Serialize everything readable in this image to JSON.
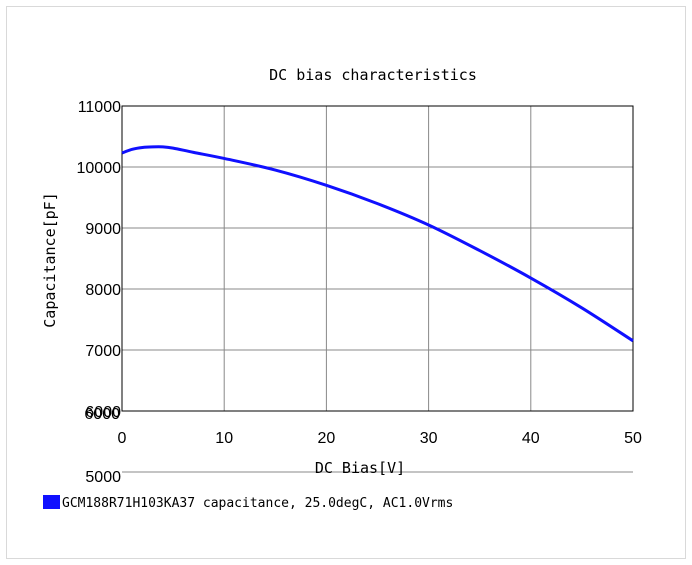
{
  "chart_data": {
    "type": "line",
    "title": "DC bias characteristics",
    "xlabel": "DC Bias[V]",
    "ylabel": "Capacitance[pF]",
    "xlim": [
      0,
      50
    ],
    "ylim": [
      6000,
      11000
    ],
    "x_ticks": [
      "0",
      "10",
      "20",
      "30",
      "40",
      "50"
    ],
    "y_ticks": [
      "6000",
      "7000",
      "8000",
      "9000",
      "10000",
      "11000"
    ],
    "y_ticks_extra": [
      "6000",
      "5000"
    ],
    "grid": true,
    "legend_position": "bottom-left",
    "series": [
      {
        "name": "GCM188R71H103KA37 capacitance, 25.0degC, AC1.0Vrms",
        "color": "#1010ff",
        "x": [
          0,
          1,
          2,
          3,
          4,
          5,
          7,
          10,
          15,
          20,
          25,
          30,
          35,
          40,
          45,
          50
        ],
        "values": [
          10230,
          10290,
          10320,
          10330,
          10330,
          10310,
          10240,
          10140,
          9950,
          9700,
          9400,
          9050,
          8630,
          8180,
          7690,
          7150
        ]
      }
    ]
  }
}
